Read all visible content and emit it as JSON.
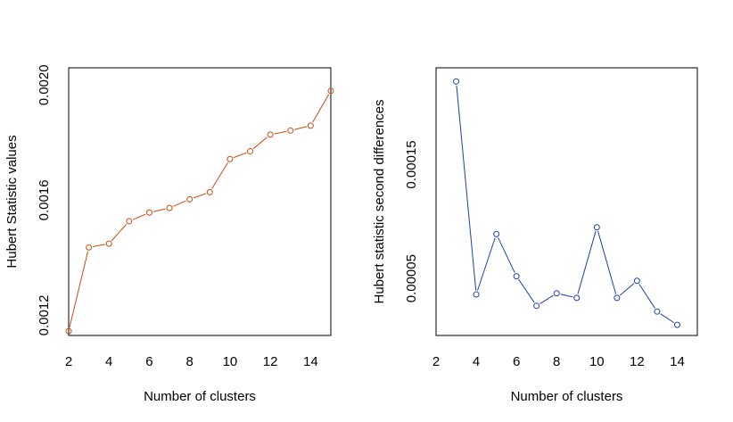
{
  "chart_data": [
    {
      "type": "line",
      "xlabel": "Number of clusters",
      "ylabel": "Hubert Statistic values",
      "xlim": [
        2,
        15
      ],
      "ylim": [
        0.00113,
        0.00206
      ],
      "x_ticks": [
        2,
        4,
        6,
        8,
        10,
        12,
        14
      ],
      "x_tick_labels": [
        "2",
        "4",
        "6",
        "8",
        "10",
        "12",
        "14"
      ],
      "y_ticks": [
        0.0012,
        0.0016,
        0.002
      ],
      "y_tick_labels": [
        "0.0012",
        "0.0016",
        "0.0020"
      ],
      "color": "#c94a14",
      "marker": "open-circle",
      "series": [
        {
          "x": [
            2,
            3,
            4,
            5,
            6,
            7,
            8,
            9,
            10,
            11,
            12,
            13,
            14,
            15
          ],
          "values": [
            0.001145,
            0.001436,
            0.001449,
            0.001527,
            0.001557,
            0.001573,
            0.001603,
            0.001628,
            0.001743,
            0.00177,
            0.001828,
            0.001842,
            0.001859,
            0.00198
          ]
        }
      ]
    },
    {
      "type": "line",
      "xlabel": "Number of clusters",
      "ylabel": "Hubert statistic second differences",
      "xlim": [
        2,
        15
      ],
      "ylim": [
        0.0,
        0.000235
      ],
      "x_ticks": [
        2,
        4,
        6,
        8,
        10,
        12,
        14
      ],
      "x_tick_labels": [
        "2",
        "4",
        "6",
        "8",
        "10",
        "12",
        "14"
      ],
      "y_ticks": [
        5e-05,
        0.00015
      ],
      "y_tick_labels": [
        "0.00005",
        "0.00015"
      ],
      "color": "#1f3fa8",
      "marker": "open-circle",
      "series": [
        {
          "x": [
            3,
            4,
            5,
            6,
            7,
            8,
            9,
            10,
            11,
            12,
            13,
            14
          ],
          "values": [
            0.000223,
            3.6e-05,
            8.9e-05,
            5.2e-05,
            2.6e-05,
            3.7e-05,
            3.3e-05,
            9.5e-05,
            3.3e-05,
            4.8e-05,
            2.1e-05,
            9.3e-06
          ]
        }
      ]
    }
  ]
}
